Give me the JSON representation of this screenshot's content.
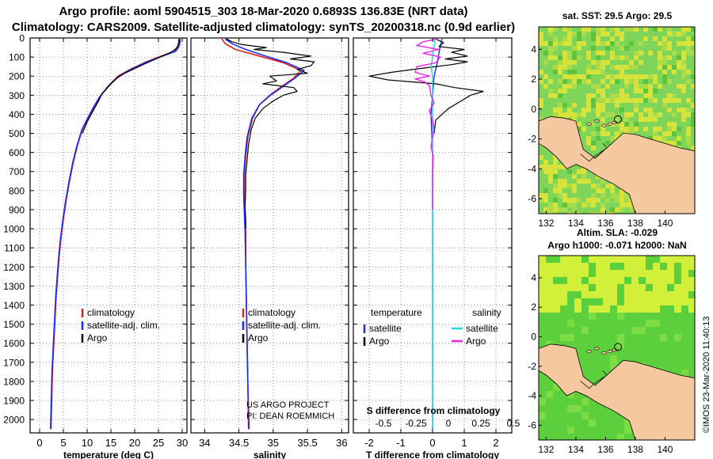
{
  "header": {
    "line1": "Argo profile: aoml 5904515_303 18-Mar-2020 0.6893S 136.83E (NRT data)",
    "line2": "Climatology: CARS2009. Satellite-adjusted climatology: synTS_20200318.nc (0.9d earlier)"
  },
  "depth_ticks": [
    0,
    100,
    200,
    300,
    400,
    500,
    600,
    700,
    800,
    900,
    1000,
    1100,
    1200,
    1300,
    1400,
    1500,
    1600,
    1700,
    1800,
    1900,
    2000
  ],
  "chart_data": [
    {
      "type": "line",
      "name": "temperature-profile",
      "xlabel": "temperature (deg C)",
      "ylabel": "depth",
      "xlim": [
        -2,
        31
      ],
      "ylim": [
        2070,
        0
      ],
      "xticks": [
        0,
        5,
        10,
        15,
        20,
        25,
        30
      ],
      "legend": [
        "climatology",
        "satellite-adj. clim.",
        "Argo"
      ],
      "series": [
        {
          "name": "climatology",
          "color": "#dd2222",
          "width": 1.6,
          "points": [
            [
              29.3,
              5
            ],
            [
              29.2,
              30
            ],
            [
              29,
              50
            ],
            [
              28.4,
              70
            ],
            [
              25,
              100
            ],
            [
              22,
              130
            ],
            [
              19,
              165
            ],
            [
              16.5,
              200
            ],
            [
              14.5,
              250
            ],
            [
              12.6,
              310
            ],
            [
              11.5,
              360
            ],
            [
              10.2,
              420
            ],
            [
              9,
              480
            ],
            [
              8,
              560
            ],
            [
              7.1,
              650
            ],
            [
              6.3,
              750
            ],
            [
              5.6,
              850
            ],
            [
              5,
              950
            ],
            [
              4.5,
              1050
            ],
            [
              4.1,
              1150
            ],
            [
              3.8,
              1250
            ],
            [
              3.5,
              1350
            ],
            [
              3.3,
              1450
            ],
            [
              3.1,
              1550
            ],
            [
              2.9,
              1650
            ],
            [
              2.7,
              1750
            ],
            [
              2.6,
              1850
            ],
            [
              2.5,
              1950
            ],
            [
              2.4,
              2050
            ]
          ]
        },
        {
          "name": "satellite-adj. clim.",
          "color": "#1a2cf0",
          "width": 1.6,
          "points": [
            [
              29.6,
              5
            ],
            [
              29.5,
              30
            ],
            [
              29.2,
              50
            ],
            [
              28.6,
              70
            ],
            [
              25.3,
              100
            ],
            [
              22.2,
              130
            ],
            [
              19.2,
              165
            ],
            [
              16.7,
              200
            ],
            [
              14.6,
              250
            ],
            [
              12.6,
              310
            ],
            [
              11.4,
              360
            ],
            [
              10.1,
              420
            ],
            [
              8.9,
              480
            ],
            [
              7.9,
              560
            ],
            [
              7,
              650
            ],
            [
              6.2,
              750
            ],
            [
              5.5,
              850
            ],
            [
              4.9,
              950
            ],
            [
              4.4,
              1050
            ],
            [
              4,
              1150
            ],
            [
              3.7,
              1250
            ],
            [
              3.4,
              1350
            ],
            [
              3.2,
              1450
            ],
            [
              3,
              1550
            ],
            [
              2.8,
              1650
            ],
            [
              2.6,
              1750
            ],
            [
              2.5,
              1850
            ],
            [
              2.4,
              1950
            ],
            [
              2.3,
              2050
            ]
          ]
        },
        {
          "name": "Argo",
          "color": "#000000",
          "width": 1.2,
          "points": [
            [
              29.4,
              5
            ],
            [
              29.3,
              25
            ],
            [
              29,
              45
            ],
            [
              28.5,
              60
            ],
            [
              27.6,
              75
            ],
            [
              25.4,
              100
            ],
            [
              24,
              115
            ],
            [
              22.2,
              135
            ],
            [
              20,
              160
            ],
            [
              17.9,
              185
            ],
            [
              16.3,
              210
            ],
            [
              15.2,
              235
            ],
            [
              14.3,
              260
            ],
            [
              13.2,
              290
            ],
            [
              12.4,
              330
            ],
            [
              11.3,
              380
            ],
            [
              10,
              440
            ],
            [
              9,
              500
            ]
          ]
        }
      ]
    },
    {
      "type": "line",
      "name": "salinity-profile",
      "xlabel": "salinity",
      "ylabel": "depth",
      "xlim": [
        33.8,
        36.1
      ],
      "ylim": [
        2070,
        0
      ],
      "xticks": [
        34,
        34.5,
        35,
        35.5,
        36
      ],
      "legend": [
        "climatology",
        "satellite-adj. clim.",
        "Argo"
      ],
      "credit": [
        "US ARGO PROJECT",
        "PI: DEAN ROEMMICH"
      ],
      "series": [
        {
          "name": "climatology",
          "color": "#dd2222",
          "width": 1.6,
          "points": [
            [
              34.25,
              5
            ],
            [
              34.3,
              30
            ],
            [
              34.45,
              60
            ],
            [
              34.75,
              90
            ],
            [
              35.15,
              130
            ],
            [
              35.4,
              170
            ],
            [
              35.3,
              210
            ],
            [
              35.1,
              260
            ],
            [
              34.95,
              300
            ],
            [
              34.8,
              350
            ],
            [
              34.7,
              420
            ],
            [
              34.63,
              520
            ],
            [
              34.6,
              620
            ],
            [
              34.58,
              720
            ],
            [
              34.58,
              820
            ],
            [
              34.59,
              920
            ],
            [
              34.6,
              1020
            ],
            [
              34.6,
              1200
            ],
            [
              34.61,
              1400
            ],
            [
              34.62,
              1600
            ],
            [
              34.63,
              1800
            ],
            [
              34.65,
              2050
            ]
          ]
        },
        {
          "name": "satellite-adj. clim.",
          "color": "#1a2cf0",
          "width": 1.6,
          "points": [
            [
              34.3,
              5
            ],
            [
              34.4,
              30
            ],
            [
              34.6,
              60
            ],
            [
              34.85,
              90
            ],
            [
              35.2,
              130
            ],
            [
              35.45,
              170
            ],
            [
              35.32,
              210
            ],
            [
              35.12,
              260
            ],
            [
              34.96,
              300
            ],
            [
              34.8,
              350
            ],
            [
              34.69,
              420
            ],
            [
              34.62,
              520
            ],
            [
              34.59,
              620
            ],
            [
              34.57,
              720
            ],
            [
              34.57,
              820
            ],
            [
              34.58,
              920
            ],
            [
              34.59,
              1020
            ],
            [
              34.6,
              1200
            ],
            [
              34.61,
              1400
            ],
            [
              34.62,
              1600
            ],
            [
              34.63,
              1800
            ],
            [
              34.64,
              2050
            ]
          ]
        },
        {
          "name": "Argo",
          "color": "#000000",
          "width": 1.2,
          "points": [
            [
              34.32,
              5
            ],
            [
              34.4,
              20
            ],
            [
              34.55,
              35
            ],
            [
              34.9,
              50
            ],
            [
              34.72,
              60
            ],
            [
              35.15,
              75
            ],
            [
              35.55,
              95
            ],
            [
              35.25,
              110
            ],
            [
              35.6,
              125
            ],
            [
              35.55,
              145
            ],
            [
              35.35,
              165
            ],
            [
              35.5,
              185
            ],
            [
              34.95,
              200
            ],
            [
              35.05,
              225
            ],
            [
              34.85,
              240
            ],
            [
              35.3,
              260
            ],
            [
              35.35,
              280
            ],
            [
              35.15,
              300
            ],
            [
              35.0,
              330
            ],
            [
              34.85,
              370
            ],
            [
              34.74,
              420
            ],
            [
              34.68,
              480
            ],
            [
              34.64,
              560
            ],
            [
              34.62,
              640
            ],
            [
              34.6,
              720
            ],
            [
              34.6,
              800
            ],
            [
              34.59,
              880
            ],
            [
              34.6,
              960
            ],
            [
              34.6,
              1000
            ]
          ]
        }
      ]
    },
    {
      "type": "line",
      "name": "difference-profile",
      "xlabel": "T difference from climatology",
      "ylabel": "depth",
      "xlim": [
        -2.5,
        2.5
      ],
      "ylim": [
        2070,
        0
      ],
      "xticks": [
        -2,
        -1,
        0,
        1,
        2
      ],
      "secondary_axis": {
        "label": "S difference from climatology",
        "ticks": [
          -0.5,
          -0.25,
          0,
          0.25,
          0.5
        ]
      },
      "legend": {
        "temperature": [
          "satellite",
          "Argo"
        ],
        "salinity": [
          "satellite",
          "Argo"
        ]
      },
      "series": [
        {
          "name": "T satellite",
          "color": "#1a2cf0",
          "width": 1.4,
          "points": [
            [
              0.3,
              5
            ],
            [
              0.25,
              40
            ],
            [
              0.2,
              80
            ],
            [
              0.15,
              130
            ],
            [
              0.05,
              200
            ],
            [
              0,
              300
            ],
            [
              -0.05,
              400
            ],
            [
              0,
              600
            ],
            [
              0,
              1000
            ],
            [
              0,
              1500
            ],
            [
              0,
              2050
            ]
          ]
        },
        {
          "name": "T Argo",
          "color": "#000000",
          "width": 1.2,
          "points": [
            [
              0.1,
              5
            ],
            [
              0.35,
              25
            ],
            [
              0.2,
              45
            ],
            [
              1.0,
              60
            ],
            [
              0.6,
              75
            ],
            [
              1.1,
              95
            ],
            [
              0.4,
              110
            ],
            [
              1.1,
              125
            ],
            [
              0.6,
              140
            ],
            [
              -0.4,
              160
            ],
            [
              -1.3,
              180
            ],
            [
              -2,
              200
            ],
            [
              -1.4,
              220
            ],
            [
              0.1,
              240
            ],
            [
              0.7,
              260
            ],
            [
              1.6,
              280
            ],
            [
              1.2,
              300
            ],
            [
              0.9,
              330
            ],
            [
              0.5,
              370
            ],
            [
              0.1,
              430
            ],
            [
              0.05,
              500
            ]
          ]
        },
        {
          "name": "S satellite",
          "color": "#22dddd",
          "width": 1.4,
          "points": [
            [
              0.05,
              5
            ],
            [
              0.08,
              30
            ],
            [
              0.02,
              60
            ],
            [
              0,
              100
            ],
            [
              -0.05,
              150
            ],
            [
              0,
              200
            ],
            [
              0,
              300
            ],
            [
              0,
              500
            ],
            [
              0,
              1000
            ],
            [
              0,
              1500
            ],
            [
              0,
              2050
            ]
          ]
        },
        {
          "name": "S Argo",
          "color": "#ee22ee",
          "width": 1.4,
          "points": [
            [
              0.15,
              5
            ],
            [
              -0.3,
              20
            ],
            [
              -0.5,
              40
            ],
            [
              0.2,
              60
            ],
            [
              -0.3,
              80
            ],
            [
              0.25,
              100
            ],
            [
              0.1,
              130
            ],
            [
              -0.5,
              150
            ],
            [
              -0.55,
              180
            ],
            [
              -0.1,
              200
            ],
            [
              -0.55,
              215
            ],
            [
              -0.25,
              230
            ],
            [
              -0.1,
              250
            ],
            [
              -0.05,
              300
            ],
            [
              0.05,
              340
            ],
            [
              -0.1,
              380
            ],
            [
              0,
              430
            ],
            [
              0.05,
              480
            ],
            [
              0,
              520
            ],
            [
              -0.05,
              570
            ],
            [
              0.02,
              620
            ],
            [
              0,
              700
            ],
            [
              0,
              800
            ],
            [
              0,
              900
            ]
          ]
        }
      ]
    }
  ],
  "maps": {
    "top": {
      "title": "sat. SST: 29.5 Argo: 29.5",
      "xticks": [
        "132",
        "134",
        "136",
        "138",
        "140"
      ],
      "yticks": [
        "4",
        "2",
        "0",
        "-2",
        "-4",
        "-6"
      ],
      "colors": {
        "ocean": "#7fd45a",
        "land": "#f5c8a0",
        "warm": "#d6e33a"
      }
    },
    "bottom": {
      "title1": "Altim. SLA: -0.029",
      "title2": "Argo h1000: -0.071 h2000: NaN",
      "xticks": [
        "132",
        "134",
        "136",
        "138",
        "140"
      ],
      "yticks": [
        "4",
        "2",
        "0",
        "-2",
        "-4",
        "-6"
      ],
      "colors": {
        "ocean": "#5ccf3c",
        "land": "#f5c8a0",
        "high": "#d2f03a"
      }
    }
  },
  "credit": "©IMOS 23-Mar-2020 11:40:13"
}
